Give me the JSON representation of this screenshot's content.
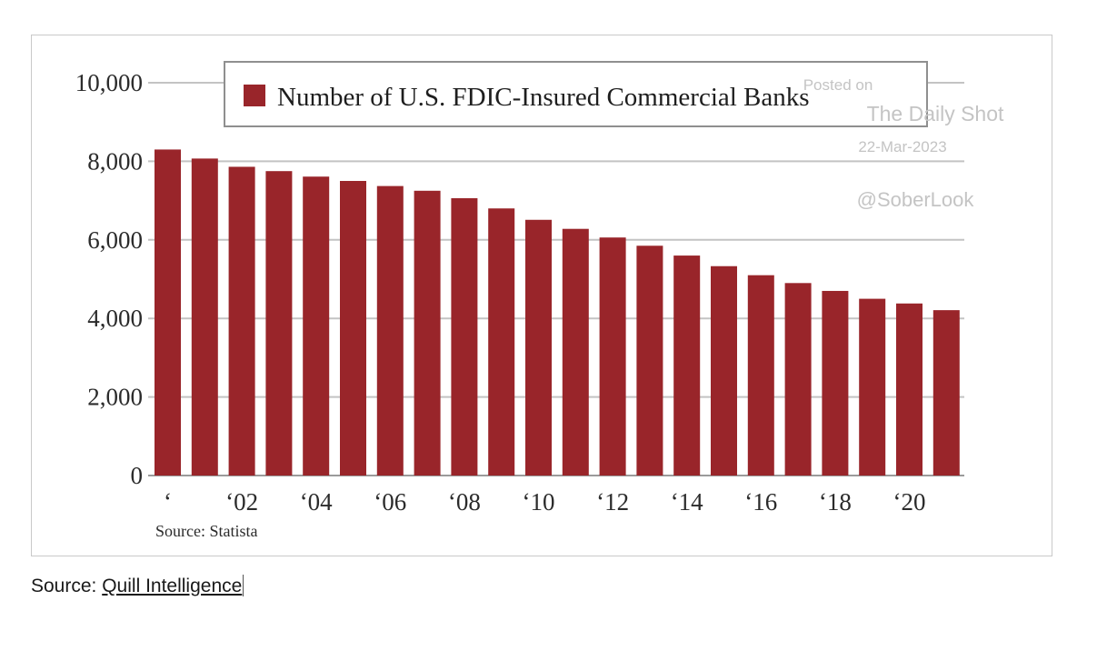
{
  "chart_data": {
    "type": "bar",
    "title": "",
    "xlabel": "",
    "ylabel": "",
    "legend": {
      "entries": [
        "Number of U.S. FDIC-Insured Commercial Banks"
      ],
      "position": "top"
    },
    "ylim": [
      0,
      10000
    ],
    "yticks": [
      0,
      2000,
      4000,
      6000,
      8000,
      10000
    ],
    "ytick_labels": [
      "0",
      "2,000",
      "4,000",
      "6,000",
      "8,000",
      "10,000"
    ],
    "categories": [
      "2000",
      "2001",
      "2002",
      "2003",
      "2004",
      "2005",
      "2006",
      "2007",
      "2008",
      "2009",
      "2010",
      "2011",
      "2012",
      "2013",
      "2014",
      "2015",
      "2016",
      "2017",
      "2018",
      "2019",
      "2020",
      "2021"
    ],
    "xtick_labels": [
      "‘",
      "‘02",
      "‘04",
      "‘06",
      "‘08",
      "‘10",
      "‘12",
      "‘14",
      "‘16",
      "‘18",
      "‘20"
    ],
    "series": [
      {
        "name": "Number of U.S. FDIC-Insured Commercial Banks",
        "color": "#99252a",
        "values": [
          8300,
          8070,
          7860,
          7750,
          7610,
          7500,
          7370,
          7250,
          7060,
          6800,
          6510,
          6280,
          6060,
          5850,
          5600,
          5330,
          5100,
          4900,
          4700,
          4500,
          4380,
          4210
        ]
      }
    ],
    "grid": true,
    "source_note": "Source: Statista"
  },
  "watermark": {
    "posted_on": "Posted on",
    "publisher": "The Daily Shot",
    "date": "22-Mar-2023",
    "handle": "@SoberLook"
  },
  "caption": {
    "prefix": "Source: ",
    "link_text": "Quill Intelligence"
  }
}
